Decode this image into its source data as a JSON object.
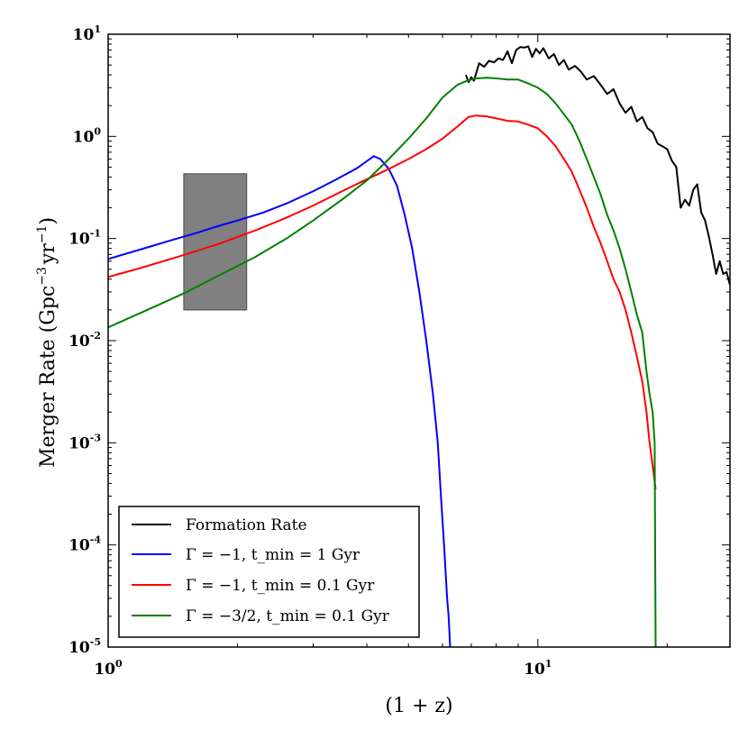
{
  "chart_data": {
    "type": "line",
    "xlabel": "(1 + z)",
    "ylabel": "Merger Rate (Gpc^-3 yr^-1)",
    "xscale": "log",
    "yscale": "log",
    "xlim": [
      1,
      28
    ],
    "ylim": [
      1e-05,
      10
    ],
    "grid": false,
    "legend_position": "lower-left",
    "x_ticks": [
      {
        "value": 1,
        "base": "10",
        "exp": "0"
      },
      {
        "value": 10,
        "base": "10",
        "exp": "1"
      }
    ],
    "y_ticks": [
      {
        "value": 1e-05,
        "base": "10",
        "exp": "-5"
      },
      {
        "value": 0.0001,
        "base": "10",
        "exp": "-4"
      },
      {
        "value": 0.001,
        "base": "10",
        "exp": "-3"
      },
      {
        "value": 0.01,
        "base": "10",
        "exp": "-2"
      },
      {
        "value": 0.1,
        "base": "10",
        "exp": "-1"
      },
      {
        "value": 1,
        "base": "10",
        "exp": "0"
      },
      {
        "value": 10,
        "base": "10",
        "exp": "1"
      }
    ],
    "shaded_region": {
      "x": [
        1.5,
        2.1
      ],
      "y": [
        0.02,
        0.43
      ],
      "color": "#808080"
    },
    "series": [
      {
        "name": "Formation Rate",
        "color": "#000000",
        "x": [
          6.8,
          6.9,
          7.0,
          7.1,
          7.3,
          7.5,
          7.7,
          7.9,
          8.1,
          8.3,
          8.5,
          8.7,
          8.9,
          9.1,
          9.3,
          9.5,
          9.7,
          9.9,
          10.1,
          10.3,
          10.6,
          10.9,
          11.2,
          11.5,
          11.8,
          12.2,
          12.6,
          13.0,
          13.5,
          14.0,
          14.5,
          15.0,
          15.5,
          16.0,
          16.5,
          17.0,
          17.5,
          18.0,
          18.5,
          19.0,
          19.5,
          20.0,
          20.5,
          21.0,
          21.5,
          22.0,
          22.5,
          23.0,
          23.5,
          24.0,
          24.5,
          25.0,
          25.5,
          26.0,
          26.5,
          27.0,
          27.5,
          28.0
        ],
        "y": [
          4.0,
          3.4,
          3.8,
          3.5,
          5.2,
          4.8,
          5.5,
          5.3,
          5.8,
          5.6,
          6.8,
          5.2,
          7.0,
          7.5,
          7.4,
          7.6,
          6.0,
          7.2,
          6.5,
          7.3,
          5.8,
          6.4,
          5.0,
          5.6,
          4.5,
          4.9,
          4.3,
          3.6,
          3.9,
          3.2,
          2.6,
          2.9,
          2.1,
          1.7,
          1.95,
          1.4,
          1.55,
          1.2,
          1.1,
          0.85,
          0.8,
          0.75,
          0.58,
          0.5,
          0.2,
          0.24,
          0.21,
          0.3,
          0.34,
          0.18,
          0.15,
          0.105,
          0.07,
          0.045,
          0.06,
          0.045,
          0.047,
          0.035
        ]
      },
      {
        "name": "Γ = −1, t_min = 1 Gyr",
        "color": "#0000ff",
        "x": [
          1.0,
          1.2,
          1.4,
          1.6,
          1.8,
          2.0,
          2.3,
          2.6,
          3.0,
          3.4,
          3.8,
          4.15,
          4.3,
          4.5,
          4.7,
          4.9,
          5.1,
          5.3,
          5.5,
          5.7,
          5.85,
          5.95,
          6.05,
          6.15,
          6.2,
          6.25
        ],
        "y": [
          0.063,
          0.079,
          0.096,
          0.113,
          0.132,
          0.15,
          0.18,
          0.22,
          0.29,
          0.38,
          0.49,
          0.64,
          0.6,
          0.48,
          0.33,
          0.17,
          0.08,
          0.03,
          0.01,
          0.003,
          0.001,
          0.0003,
          0.0001,
          3e-05,
          2e-05,
          1e-05
        ]
      },
      {
        "name": "Γ = −1, t_min = 0.1 Gyr",
        "color": "#ff0000",
        "x": [
          1.0,
          1.2,
          1.5,
          1.8,
          2.2,
          2.6,
          3.0,
          3.5,
          4.0,
          4.5,
          5.0,
          5.5,
          6.0,
          6.5,
          6.9,
          7.2,
          7.6,
          8.0,
          8.5,
          9.0,
          9.5,
          10.0,
          10.5,
          11.0,
          11.5,
          12.0,
          12.5,
          13.0,
          13.5,
          14.0,
          14.5,
          15.0,
          15.5,
          16.0,
          16.5,
          17.0,
          17.5,
          17.9,
          18.2,
          18.5,
          18.8
        ],
        "y": [
          0.042,
          0.052,
          0.069,
          0.088,
          0.12,
          0.16,
          0.21,
          0.29,
          0.38,
          0.48,
          0.6,
          0.75,
          0.95,
          1.25,
          1.55,
          1.6,
          1.57,
          1.5,
          1.42,
          1.4,
          1.3,
          1.2,
          1.0,
          0.8,
          0.6,
          0.45,
          0.3,
          0.2,
          0.13,
          0.09,
          0.06,
          0.04,
          0.03,
          0.02,
          0.012,
          0.007,
          0.004,
          0.002,
          0.001,
          0.0006,
          0.00035
        ]
      },
      {
        "name": "Γ = −3/2, t_min = 0.1 Gyr",
        "color": "#008000",
        "x": [
          1.0,
          1.2,
          1.5,
          1.8,
          2.2,
          2.6,
          3.0,
          3.5,
          4.0,
          4.5,
          5.0,
          5.5,
          6.0,
          6.5,
          6.9,
          7.2,
          7.6,
          8.0,
          8.5,
          9.0,
          9.5,
          10.0,
          10.5,
          11.0,
          11.5,
          12.0,
          12.5,
          13.0,
          13.5,
          14.0,
          14.5,
          15.0,
          15.5,
          16.0,
          16.5,
          17.0,
          17.5,
          17.9,
          18.2,
          18.5,
          18.7,
          18.75,
          18.8
        ],
        "y": [
          0.0135,
          0.019,
          0.029,
          0.043,
          0.066,
          0.1,
          0.15,
          0.24,
          0.37,
          0.6,
          0.95,
          1.5,
          2.4,
          3.2,
          3.55,
          3.7,
          3.75,
          3.7,
          3.6,
          3.6,
          3.3,
          3.0,
          2.6,
          2.1,
          1.65,
          1.3,
          0.9,
          0.6,
          0.4,
          0.27,
          0.17,
          0.12,
          0.08,
          0.05,
          0.03,
          0.018,
          0.012,
          0.005,
          0.003,
          0.002,
          0.001,
          0.0001,
          1e-05
        ]
      }
    ]
  },
  "axes": {
    "xlabel_text": "(1 + z)",
    "ylabel_main": "Merger Rate (Gpc",
    "ylabel_exp1": "−3",
    "ylabel_mid": "yr",
    "ylabel_exp2": "−1",
    "ylabel_end": ")"
  },
  "legend": {
    "entries": [
      {
        "label": "Formation Rate",
        "color": "#000000"
      },
      {
        "label": "Γ = −1, t_min = 1 Gyr",
        "color": "#0000ff"
      },
      {
        "label": "Γ = −1, t_min = 0.1 Gyr",
        "color": "#ff0000"
      },
      {
        "label": "Γ = −3/2, t_min = 0.1 Gyr",
        "color": "#008000"
      }
    ]
  }
}
